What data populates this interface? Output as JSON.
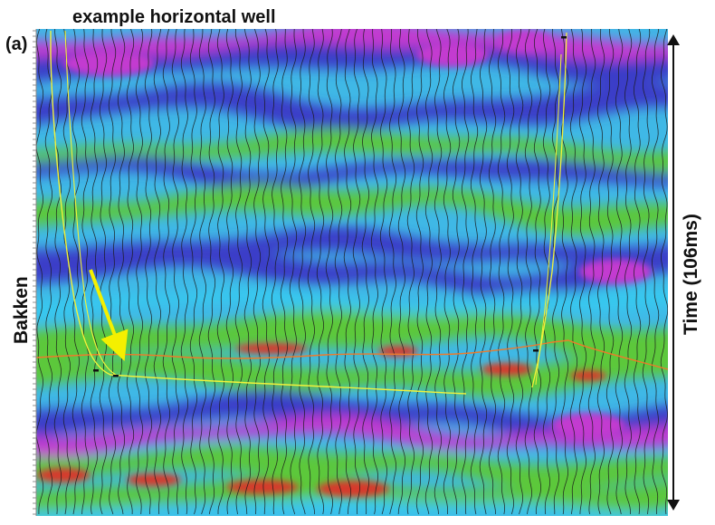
{
  "figure": {
    "title": "example horizontal well",
    "panel_label": "(a)",
    "side_label": "Bakken",
    "time_label": "Time (106ms)"
  },
  "colors": {
    "peak_red": "#d8382a",
    "magenta": "#c33ad0",
    "trough_blue": "#3a3dc8",
    "cyan": "#38c8ef",
    "green": "#5cc83a",
    "well_path": "#f2f23a",
    "horizon": "#ee7a2a",
    "arrow": "#f4f000",
    "wiggle": "#1a1a1a"
  }
}
